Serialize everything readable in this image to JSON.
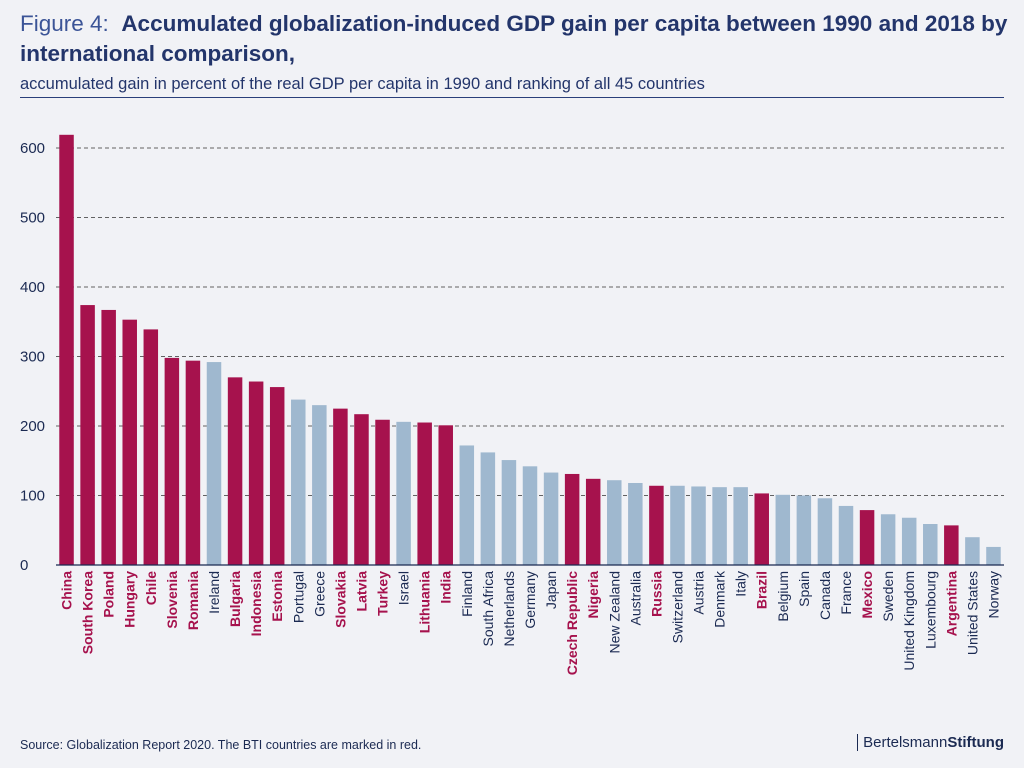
{
  "figure_label": "Figure 4:",
  "title": "Accumulated globalization-induced GDP gain per capita between 1990 and 2018 by international comparison,",
  "subtitle": "accumulated gain in percent of the real GDP per capita in 1990 and ranking of all 45 countries",
  "source": "Source: Globalization Report 2020. The BTI countries are marked in red.",
  "brand": {
    "part1": "Bertelsmann",
    "part2": "Stiftung"
  },
  "colors": {
    "bti": "#a6124d",
    "other": "#9fb8cf",
    "text": "#1b2a52",
    "grid": "#333333"
  },
  "chart_data": {
    "type": "bar",
    "title": "Accumulated globalization-induced GDP gain per capita between 1990 and 2018 by international comparison,",
    "subtitle": "accumulated gain in percent of the real GDP per capita in 1990 and ranking of all 45 countries",
    "xlabel": "",
    "ylabel": "",
    "ylim": [
      0,
      600
    ],
    "yticks": [
      0,
      100,
      200,
      300,
      400,
      500,
      600
    ],
    "grid": true,
    "categories": [
      "China",
      "South Korea",
      "Poland",
      "Hungary",
      "Chile",
      "Slovenia",
      "Romania",
      "Ireland",
      "Bulgaria",
      "Indonesia",
      "Estonia",
      "Portugal",
      "Greece",
      "Slovakia",
      "Latvia",
      "Turkey",
      "Israel",
      "Lithuania",
      "India",
      "Finland",
      "South Africa",
      "Netherlands",
      "Germany",
      "Japan",
      "Czech Republic",
      "Nigeria",
      "New Zealand",
      "Australia",
      "Russia",
      "Switzerland",
      "Austria",
      "Denmark",
      "Italy",
      "Brazil",
      "Belgium",
      "Spain",
      "Canada",
      "France",
      "Mexico",
      "Sweden",
      "United Kingdom",
      "Luxembourg",
      "Argentina",
      "United States",
      "Norway"
    ],
    "values": [
      619,
      374,
      367,
      353,
      339,
      298,
      294,
      292,
      270,
      264,
      256,
      238,
      230,
      225,
      217,
      209,
      206,
      205,
      201,
      172,
      162,
      151,
      142,
      133,
      131,
      124,
      122,
      118,
      114,
      114,
      113,
      112,
      112,
      103,
      101,
      100,
      96,
      85,
      79,
      73,
      68,
      59,
      57,
      40,
      26
    ],
    "bti": [
      true,
      true,
      true,
      true,
      true,
      true,
      true,
      false,
      true,
      true,
      true,
      false,
      false,
      true,
      true,
      true,
      false,
      true,
      true,
      false,
      false,
      false,
      false,
      false,
      true,
      true,
      false,
      false,
      true,
      false,
      false,
      false,
      false,
      true,
      false,
      false,
      false,
      false,
      true,
      false,
      false,
      false,
      true,
      false,
      false
    ]
  }
}
